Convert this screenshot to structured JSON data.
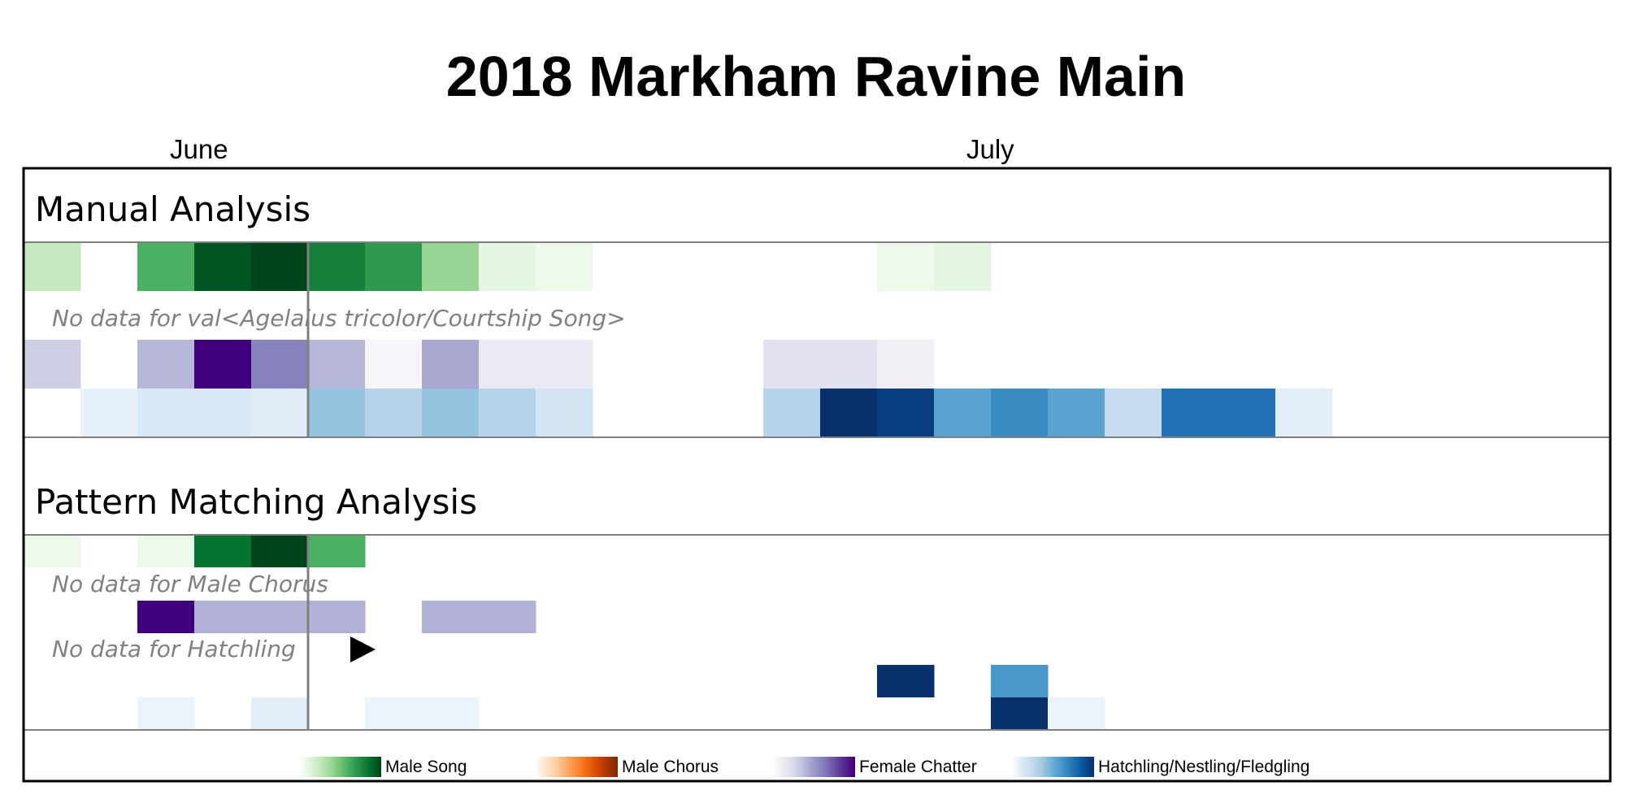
{
  "chart_data": {
    "type": "heatmap",
    "title": "2018 Markham Ravine Main",
    "month_labels": [
      {
        "label": "June",
        "day": 3
      },
      {
        "label": "July",
        "day": 17
      }
    ],
    "day_columns": 28,
    "current_day_marker": 5,
    "playhead_day": 5.8,
    "sections": [
      {
        "name": "Manual Analysis",
        "rows": [
          {
            "scale": "green",
            "cells": [
              [
                0,
                0.25
              ],
              [
                2,
                0.6
              ],
              [
                3,
                0.95
              ],
              [
                4,
                1.0
              ],
              [
                5,
                0.8
              ],
              [
                6,
                0.7
              ],
              [
                7,
                0.4
              ],
              [
                8,
                0.12
              ],
              [
                9,
                0.06
              ],
              [
                15,
                0.06
              ],
              [
                16,
                0.12
              ]
            ]
          },
          {
            "nodata": "No data for val<Agelaius tricolor/Courtship Song>"
          },
          {
            "scale": "purple",
            "cells": [
              [
                0,
                0.3
              ],
              [
                2,
                0.4
              ],
              [
                3,
                1.0
              ],
              [
                4,
                0.6
              ],
              [
                5,
                0.4
              ],
              [
                6,
                0.05
              ],
              [
                7,
                0.45
              ],
              [
                8,
                0.15
              ],
              [
                9,
                0.15
              ],
              [
                13,
                0.2
              ],
              [
                14,
                0.2
              ],
              [
                15,
                0.1
              ]
            ]
          },
          {
            "scale": "blue",
            "cells": [
              [
                1,
                0.08
              ],
              [
                2,
                0.15
              ],
              [
                3,
                0.15
              ],
              [
                4,
                0.12
              ],
              [
                5,
                0.4
              ],
              [
                6,
                0.3
              ],
              [
                7,
                0.4
              ],
              [
                8,
                0.3
              ],
              [
                9,
                0.18
              ],
              [
                13,
                0.3
              ],
              [
                14,
                1.0
              ],
              [
                15,
                0.95
              ],
              [
                16,
                0.55
              ],
              [
                17,
                0.65
              ],
              [
                18,
                0.55
              ],
              [
                19,
                0.25
              ],
              [
                20,
                0.75
              ],
              [
                21,
                0.75
              ],
              [
                22,
                0.1
              ]
            ]
          }
        ]
      },
      {
        "name": "Pattern Matching Analysis",
        "rows": [
          {
            "scale": "green",
            "cells": [
              [
                0,
                0.06
              ],
              [
                2,
                0.06
              ],
              [
                3,
                0.85
              ],
              [
                4,
                1.0
              ],
              [
                5,
                0.6
              ]
            ]
          },
          {
            "nodata": "No data for Male Chorus"
          },
          {
            "scale": "purple",
            "cells": [
              [
                2,
                1.0
              ],
              [
                3,
                0.42
              ],
              [
                4,
                0.42
              ],
              [
                5,
                0.42
              ],
              [
                7,
                0.42
              ],
              [
                8,
                0.42
              ]
            ]
          },
          {
            "nodata": "No data for Hatchling"
          },
          {
            "scale": "blue",
            "cells": [
              [
                15,
                1.0
              ],
              [
                17,
                0.6
              ]
            ]
          },
          {
            "scale": "blue",
            "cells": [
              [
                2,
                0.06
              ],
              [
                4,
                0.1
              ],
              [
                6,
                0.06
              ],
              [
                7,
                0.06
              ],
              [
                17,
                1.0
              ],
              [
                18,
                0.06
              ]
            ]
          }
        ]
      }
    ],
    "legend": [
      {
        "label": "Male Song",
        "scale": "green"
      },
      {
        "label": "Male Chorus",
        "scale": "orange"
      },
      {
        "label": "Female Chatter",
        "scale": "purple"
      },
      {
        "label": "Hatchling/Nestling/Fledgling",
        "scale": "blue"
      }
    ],
    "colors": {
      "green": [
        "#f7fcf5",
        "#e5f5e0",
        "#c7e9c0",
        "#a1d99b",
        "#74c476",
        "#41ab5d",
        "#238b45",
        "#006d2c",
        "#00441b"
      ],
      "orange": [
        "#fff5eb",
        "#fee6ce",
        "#fdd0a2",
        "#fdae6b",
        "#fd8d3c",
        "#f16913",
        "#d94801",
        "#a63603",
        "#7f2704"
      ],
      "purple": [
        "#fcfbfd",
        "#efedf5",
        "#dadaeb",
        "#bcbddc",
        "#9e9ac8",
        "#807dba",
        "#6a51a3",
        "#54278f",
        "#3f007d"
      ],
      "blue": [
        "#f7fbff",
        "#deebf7",
        "#c6dbef",
        "#9ecae1",
        "#6baed6",
        "#4292c6",
        "#2171b5",
        "#08519c",
        "#08306b"
      ]
    }
  }
}
